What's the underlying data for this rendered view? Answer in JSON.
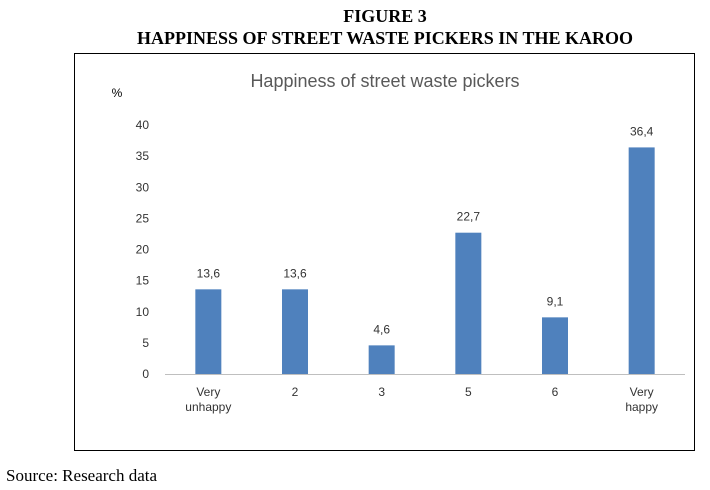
{
  "figure": {
    "number": "FIGURE 3",
    "title": "HAPPINESS OF STREET WASTE PICKERS IN THE KAROO",
    "source": "Source: Research data"
  },
  "chart_data": {
    "type": "bar",
    "title": "Happiness of street waste pickers",
    "ylabel": "%",
    "xlabel": "",
    "categories": [
      [
        "Very",
        "unhappy"
      ],
      [
        "2"
      ],
      [
        "3"
      ],
      [
        "5"
      ],
      [
        "6"
      ],
      [
        "Very",
        "happy"
      ]
    ],
    "values": [
      13.6,
      13.6,
      4.6,
      22.7,
      9.1,
      36.4
    ],
    "value_labels": [
      "13,6",
      "13,6",
      "4,6",
      "22,7",
      "9,1",
      "36,4"
    ],
    "ylim": [
      0,
      40
    ],
    "yticks": [
      0,
      5,
      10,
      15,
      20,
      25,
      30,
      35,
      40
    ],
    "grid": false,
    "legend": "none",
    "bar_color": "#4f81bd"
  }
}
